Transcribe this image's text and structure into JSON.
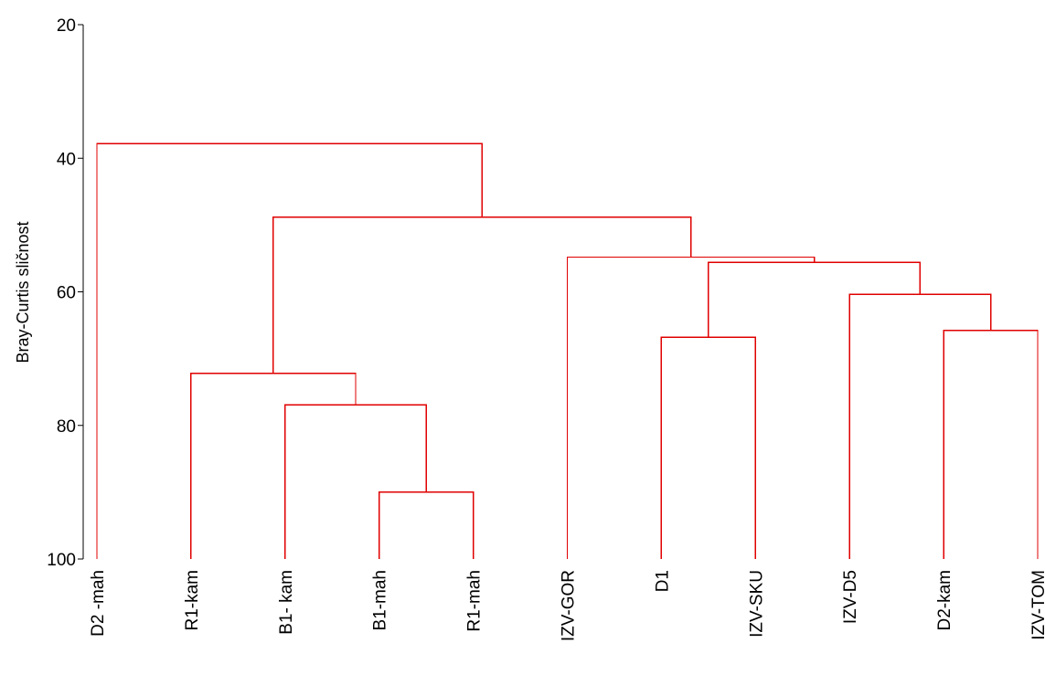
{
  "chart_data": {
    "type": "dendrogram",
    "ylabel": "Bray-Curtis sličnost",
    "ylim": [
      20,
      100
    ],
    "y_inverted": true,
    "yticks": [
      20,
      40,
      60,
      80,
      100
    ],
    "line_color": "#e00000",
    "leaves": [
      "D2 -mah",
      "R1-kam",
      "B1- kam",
      "B1-mah",
      "R1-mah",
      "IZV-GOR",
      "D1",
      "IZV-SKU",
      "IZV-D5",
      "D2-kam",
      "IZV-TOM"
    ],
    "merges": [
      {
        "id": "n1",
        "left": "B1-mah",
        "right": "R1-mah",
        "similarity": 90.0
      },
      {
        "id": "n2",
        "left": "B1- kam",
        "right": "n1",
        "similarity": 76.9
      },
      {
        "id": "n3",
        "left": "R1-kam",
        "right": "n2",
        "similarity": 72.2
      },
      {
        "id": "n4",
        "left": "D1",
        "right": "IZV-SKU",
        "similarity": 66.8
      },
      {
        "id": "n5",
        "left": "D2-kam",
        "right": "IZV-TOM",
        "similarity": 65.8
      },
      {
        "id": "n6",
        "left": "IZV-D5",
        "right": "n5",
        "similarity": 60.4
      },
      {
        "id": "n7",
        "left": "n4",
        "right": "n6",
        "similarity": 55.6
      },
      {
        "id": "n8",
        "left": "IZV-GOR",
        "right": "n7",
        "similarity": 54.8
      },
      {
        "id": "n9",
        "left": "n3",
        "right": "n8",
        "similarity": 48.8
      },
      {
        "id": "n10",
        "left": "D2 -mah",
        "right": "n9",
        "similarity": 37.8
      }
    ]
  }
}
